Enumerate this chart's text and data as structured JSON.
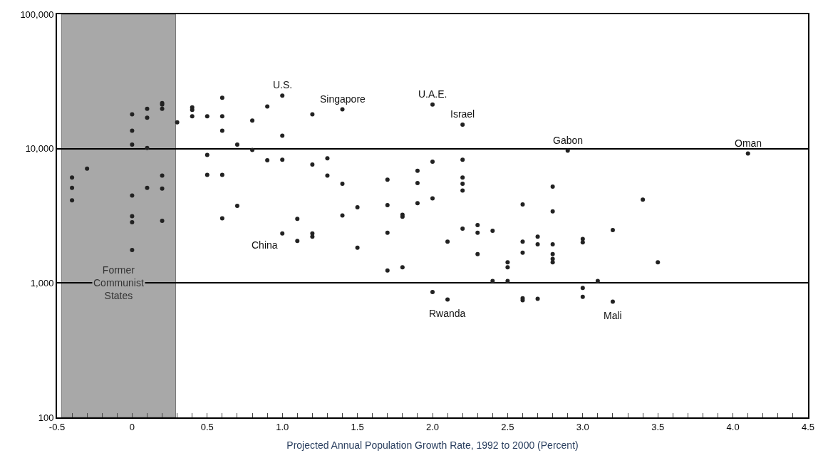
{
  "chart_data": {
    "type": "scatter",
    "xlabel": "Projected Annual Population Growth Rate, 1992 to 2000 (Percent)",
    "series": [
      {
        "color": "#222222",
        "x": [
          -0.4,
          -0.4,
          -0.4,
          -0.3,
          0,
          0,
          0,
          0,
          0,
          0,
          0,
          0.1,
          0.1,
          0.1,
          0.1,
          0.2,
          0.2,
          0.2,
          0.2,
          0.2,
          0.2,
          0.3,
          0.4,
          0.4,
          0.4,
          0.5,
          0.5,
          0.5,
          0.6,
          0.6,
          0.6,
          0.6,
          0.6,
          0.7,
          0.7,
          0.8,
          0.8,
          0.9,
          0.9,
          1.0,
          1.0,
          1.0,
          1.0,
          1.1,
          1.1,
          1.2,
          1.2,
          1.2,
          1.2,
          1.3,
          1.3,
          1.4,
          1.4,
          1.4,
          1.5,
          1.5,
          1.7,
          1.7,
          1.7,
          1.7,
          1.8,
          1.8,
          1.8,
          1.9,
          1.9,
          1.9,
          2.0,
          2.0,
          2.0,
          2.0,
          2.1,
          2.1,
          2.2,
          2.2,
          2.2,
          2.2,
          2.2,
          2.2,
          2.3,
          2.3,
          2.3,
          2.4,
          2.4,
          2.5,
          2.5,
          2.5,
          2.6,
          2.6,
          2.6,
          2.6,
          2.6,
          2.7,
          2.7,
          2.7,
          2.8,
          2.8,
          2.8,
          2.8,
          2.8,
          2.8,
          2.9,
          3.0,
          3.0,
          3.0,
          3.0,
          3.1,
          3.2,
          3.2,
          3.4,
          3.5,
          4.1
        ],
        "values": [
          6090,
          5100,
          4120,
          7100,
          18000,
          13600,
          10700,
          4480,
          3140,
          2830,
          1760,
          19800,
          17000,
          10100,
          5100,
          21800,
          21300,
          19800,
          6310,
          5040,
          2900,
          15700,
          20300,
          19400,
          17400,
          17400,
          8990,
          6380,
          23900,
          17400,
          13600,
          6380,
          3030,
          10700,
          3750,
          16200,
          9770,
          20600,
          8190,
          24800,
          12500,
          8280,
          2340,
          3000,
          2055,
          18000,
          7620,
          2340,
          2210,
          8470,
          6310,
          19600,
          5480,
          3180,
          3660,
          1830,
          5880,
          3800,
          2370,
          1240,
          3220,
          3110,
          1310,
          6850,
          5540,
          3930,
          21300,
          8000,
          4270,
          857,
          2030,
          754,
          15100,
          8280,
          6090,
          5480,
          4870,
          2540,
          2700,
          2370,
          1640,
          2450,
          1036,
          1425,
          1310,
          1036,
          3840,
          2030,
          1680,
          771,
          745,
          2210,
          1940,
          762,
          5220,
          3410,
          1940,
          1640,
          1510,
          1425,
          9660,
          2130,
          2010,
          920,
          789,
          1036,
          727,
          2480,
          4180,
          1425,
          9200
        ]
      }
    ],
    "log": "y",
    "marker": "circle",
    "grid": "y",
    "xlim": [
      -0.5,
      4.5
    ],
    "xticks": [
      -0.5,
      {
        "value": -0.4,
        "label": null
      },
      {
        "value": -0.3,
        "label": null
      },
      {
        "value": -0.2,
        "label": null
      },
      {
        "value": -0.1,
        "label": null
      },
      0,
      {
        "value": 0.1,
        "label": null
      },
      {
        "value": 0.2,
        "label": null
      },
      {
        "value": 0.3,
        "label": null
      },
      {
        "value": 0.4,
        "label": null
      },
      0.5,
      {
        "value": 0.6,
        "label": null
      },
      {
        "value": 0.7,
        "label": null
      },
      {
        "value": 0.8,
        "label": null
      },
      {
        "value": 0.9,
        "label": null
      },
      {
        "value": 1,
        "label": "1.0"
      },
      {
        "value": 1.1,
        "label": null
      },
      {
        "value": 1.2,
        "label": null
      },
      {
        "value": 1.3,
        "label": null
      },
      {
        "value": 1.4,
        "label": null
      },
      1.5,
      {
        "value": 1.6,
        "label": null
      },
      {
        "value": 1.7,
        "label": null
      },
      {
        "value": 1.8,
        "label": null
      },
      {
        "value": 1.9,
        "label": null
      },
      {
        "value": 2,
        "label": "2.0"
      },
      {
        "value": 2.1,
        "label": null
      },
      {
        "value": 2.2,
        "label": null
      },
      {
        "value": 2.3,
        "label": null
      },
      {
        "value": 2.4,
        "label": null
      },
      2.5,
      {
        "value": 2.6,
        "label": null
      },
      {
        "value": 2.7,
        "label": null
      },
      {
        "value": 2.8,
        "label": null
      },
      {
        "value": 2.9,
        "label": null
      },
      {
        "value": 3,
        "label": "3.0"
      },
      {
        "value": 3.1,
        "label": null
      },
      {
        "value": 3.2,
        "label": null
      },
      {
        "value": 3.3,
        "label": null
      },
      {
        "value": 3.4,
        "label": null
      },
      3.5,
      {
        "value": 3.6,
        "label": null
      },
      {
        "value": 3.7,
        "label": null
      },
      {
        "value": 3.8,
        "label": null
      },
      {
        "value": 3.9,
        "label": null
      },
      {
        "value": 4,
        "label": "4.0"
      },
      {
        "value": 4.1,
        "label": null
      },
      {
        "value": 4.2,
        "label": null
      },
      {
        "value": 4.3,
        "label": null
      },
      {
        "value": 4.4,
        "label": null
      },
      4.5
    ],
    "ylim": [
      100,
      100000
    ],
    "yticks": [
      100,
      {
        "value": 1000,
        "label": "1,000"
      },
      {
        "value": 10000,
        "label": "10,000"
      },
      {
        "value": 100000,
        "label": "100,000"
      }
    ],
    "bands": [
      {
        "axis": "x",
        "from": -0.47,
        "to": 0.29,
        "label": "Former Communist States",
        "color": "#a8a8a8"
      }
    ],
    "annotations": [
      {
        "text": "U.S.",
        "x": 1.0,
        "y": 24800
      },
      {
        "text": "Singapore",
        "x": 1.4,
        "y": 19600
      },
      {
        "text": "U.A.E.",
        "x": 2.0,
        "y": 21300
      },
      {
        "text": "Israel",
        "x": 2.2,
        "y": 15100
      },
      {
        "text": "Gabon",
        "x": 2.9,
        "y": 9660
      },
      {
        "text": "Oman",
        "x": 4.1,
        "y": 9200
      },
      {
        "text": "China",
        "x": 1.0,
        "y": 2340
      },
      {
        "text": "Rwanda",
        "x": 2.1,
        "y": 754
      },
      {
        "text": "Mali",
        "x": 3.2,
        "y": 727
      }
    ]
  }
}
